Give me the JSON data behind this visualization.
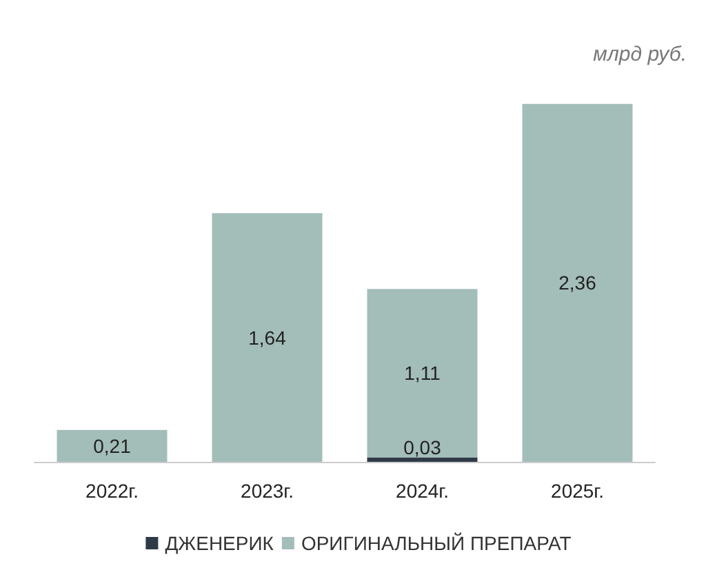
{
  "chart_data": {
    "type": "bar",
    "stacked": true,
    "categories": [
      "2022г.",
      "2023г.",
      "2024г.",
      "2025г."
    ],
    "series": [
      {
        "name": "ДЖЕНЕРИК",
        "color": "#2e3b47",
        "values": [
          null,
          null,
          0.03,
          null
        ],
        "value_labels": [
          null,
          null,
          "0,03",
          null
        ]
      },
      {
        "name": "ОРИГИНАЛЬНЫЙ ПРЕПАРАТ",
        "color": "#a3bdb8",
        "values": [
          0.21,
          1.64,
          1.11,
          2.36
        ],
        "value_labels": [
          "0,21",
          "1,64",
          "1,11",
          "2,36"
        ]
      }
    ],
    "annotations": [
      "млрд руб."
    ],
    "legend": "bottom"
  }
}
